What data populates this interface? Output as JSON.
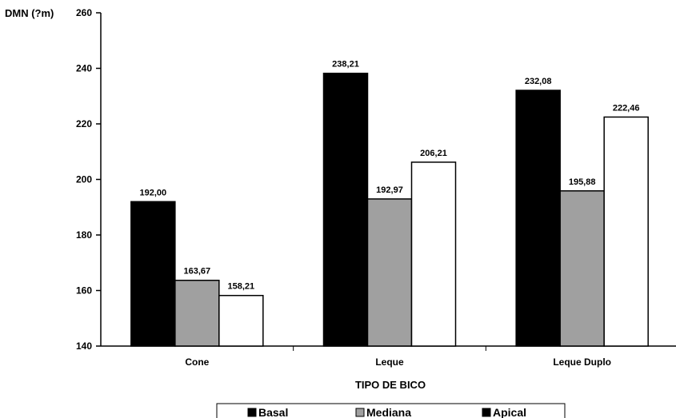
{
  "chart_data": {
    "type": "bar",
    "title": "",
    "xlabel": "TIPO DE BICO",
    "ylabel": "DMN (?m)",
    "categories": [
      "Cone",
      "Leque",
      "Leque Duplo"
    ],
    "series": [
      {
        "name": "Basal",
        "values": [
          192.0,
          238.21,
          232.08
        ],
        "labels": [
          "192,00",
          "238,21",
          "232,08"
        ],
        "color": "#000000"
      },
      {
        "name": "Mediana",
        "values": [
          163.67,
          192.97,
          195.88
        ],
        "labels": [
          "163,67",
          "192,97",
          "195,88"
        ],
        "color": "#a0a0a0"
      },
      {
        "name": "Apical",
        "values": [
          158.21,
          206.21,
          222.46
        ],
        "labels": [
          "158,21",
          "206,21",
          "222,46"
        ],
        "color": "#ffffff"
      }
    ],
    "ylim": [
      140,
      260
    ],
    "yticks": [
      140,
      160,
      180,
      200,
      220,
      240,
      260
    ],
    "grid": false,
    "legend_position": "bottom",
    "legend_swatch_colors": [
      "#000000",
      "#a0a0a0",
      "#000000"
    ]
  }
}
